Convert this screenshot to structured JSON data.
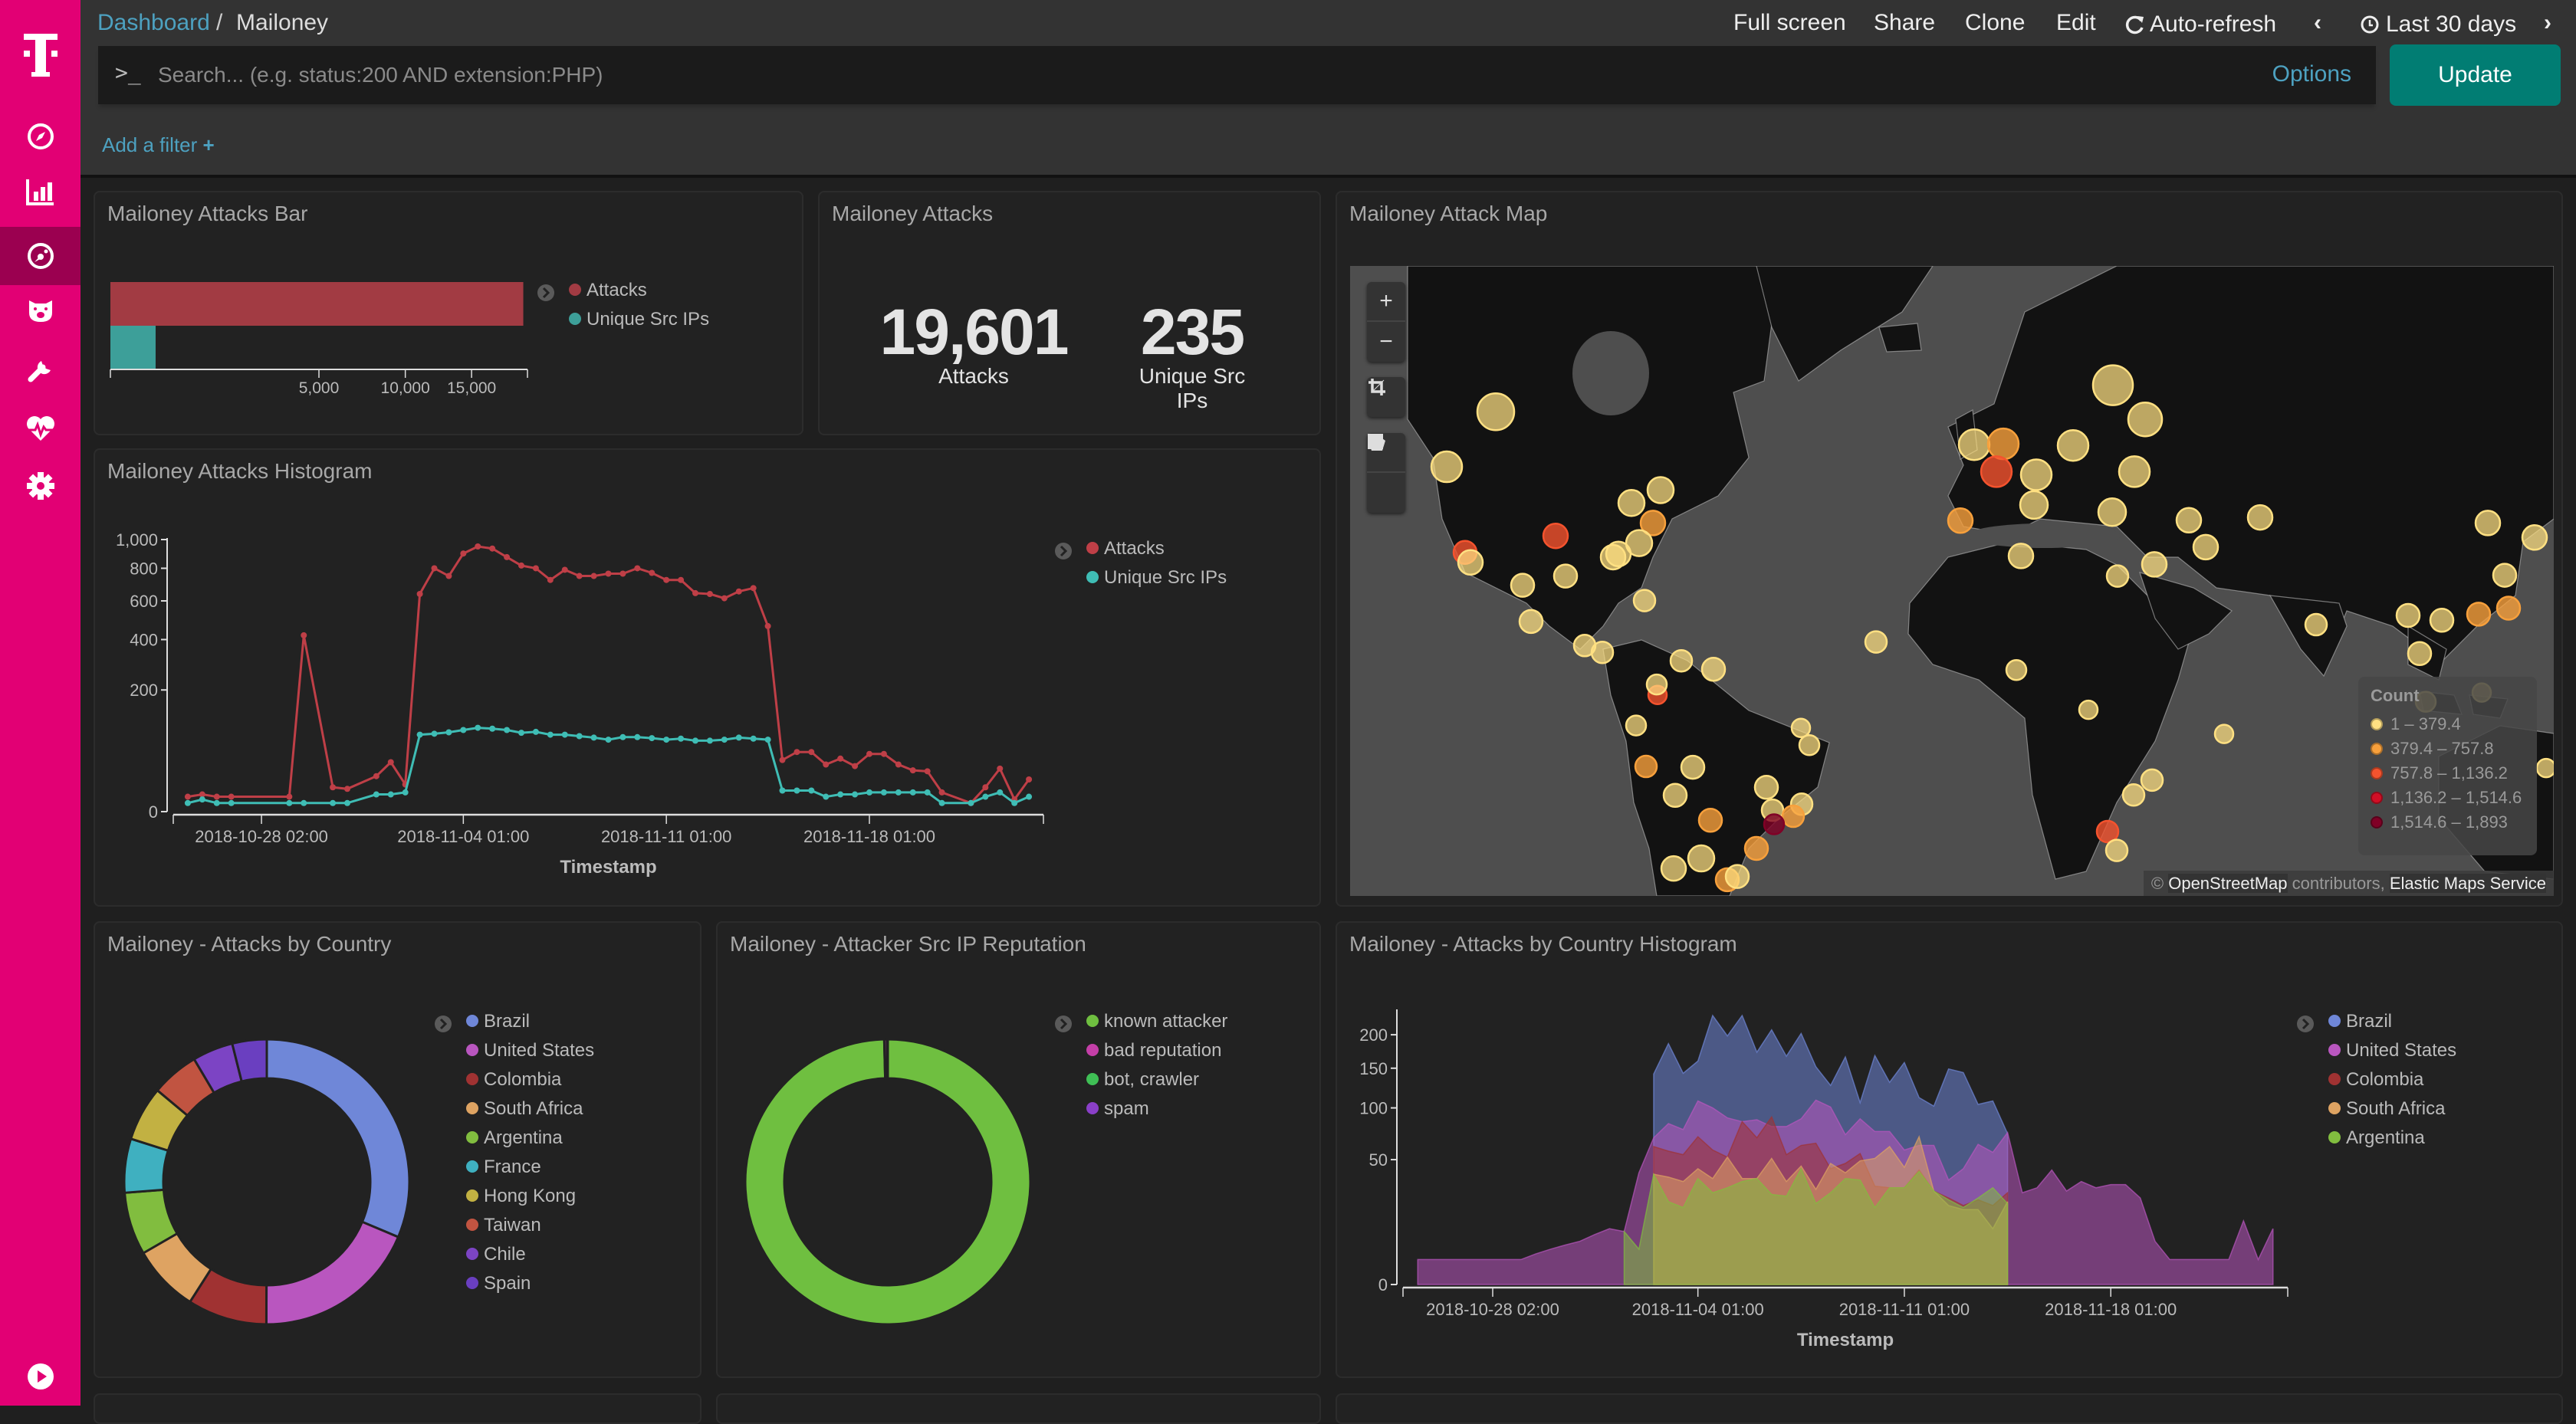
{
  "breadcrumb": {
    "root": "Dashboard",
    "separator": "/",
    "current": "Mailoney"
  },
  "topmenu": {
    "full_screen": "Full screen",
    "share": "Share",
    "clone": "Clone",
    "edit": "Edit",
    "auto_refresh": "Auto-refresh",
    "prev": "‹",
    "time_range": "Last 30 days",
    "next": "›"
  },
  "search": {
    "prompt": ">_",
    "placeholder": "Search... (e.g. status:200 AND extension:PHP)",
    "value": "",
    "options": "Options",
    "update": "Update"
  },
  "filter": {
    "add": "Add a filter",
    "plus": "+"
  },
  "colors": {
    "brand": "#e20074",
    "accent": "#4da1c0",
    "update": "#017d73",
    "attacks": "#bf3f47",
    "unique_ips": "#3fbdb5"
  },
  "sidebar": {
    "items": [
      {
        "icon": "discover-compass-icon"
      },
      {
        "icon": "visualize-bar-chart-icon"
      },
      {
        "icon": "dashboard-icon",
        "active": true
      },
      {
        "icon": "timelion-bear-icon"
      },
      {
        "icon": "dev-tools-wrench-icon"
      },
      {
        "icon": "monitoring-heart-icon"
      },
      {
        "icon": "management-gear-icon"
      },
      {
        "icon": "collapse-play-icon"
      }
    ]
  },
  "panels": {
    "bar": {
      "title": "Mailoney Attacks Bar"
    },
    "metric": {
      "title": "Mailoney Attacks",
      "items": [
        {
          "value": "19,601",
          "label": "Attacks"
        },
        {
          "value": "235",
          "label": "Unique Src IPs"
        }
      ]
    },
    "map": {
      "title": "Mailoney Attack Map",
      "controls": {
        "zoom_in": "+",
        "zoom_out": "−"
      },
      "legend": {
        "title": "Count",
        "items": [
          {
            "label": "1 – 379.4",
            "color": "#ffe082"
          },
          {
            "label": "379.4 – 757.8",
            "color": "#f7a03c"
          },
          {
            "label": "757.8 – 1,136.2",
            "color": "#f4532e"
          },
          {
            "label": "1,136.2 – 1,514.6",
            "color": "#d10f26"
          },
          {
            "label": "1,514.6 – 1,893",
            "color": "#800026"
          }
        ]
      },
      "attribution": {
        "copy": "©",
        "osm": "OpenStreetMap",
        "contrib": " contributors, ",
        "ems": "Elastic Maps Service"
      }
    },
    "histogram": {
      "title": "Mailoney Attacks Histogram"
    },
    "country": {
      "title": "Mailoney - Attacks by Country"
    },
    "reputation": {
      "title": "Mailoney - Attacker Src IP Reputation"
    },
    "country_hist": {
      "title": "Mailoney - Attacks by Country Histogram"
    }
  },
  "chart_data": [
    {
      "id": "bar",
      "type": "bar",
      "orientation": "horizontal",
      "scale": "sqrt",
      "series": [
        {
          "name": "Attacks",
          "value": 19601,
          "color": "#a23b43"
        },
        {
          "name": "Unique Src IPs",
          "value": 235,
          "color": "#3d9f99"
        }
      ],
      "xlim": [
        0,
        20000
      ],
      "ticks": [
        5000,
        10000,
        15000
      ],
      "tick_labels": [
        "5,000",
        "10,000",
        "15,000"
      ],
      "legend": "right"
    },
    {
      "id": "histogram",
      "type": "line",
      "yscale": "sqrt",
      "xlabel": "Timestamp",
      "ylim": [
        0,
        1000
      ],
      "yticks": [
        0,
        200,
        400,
        600,
        800,
        1000
      ],
      "ytick_labels": [
        "0",
        "200",
        "400",
        "600",
        "800",
        "1,000"
      ],
      "xlim": [
        "2018-10-25 01:00",
        "2018-11-24 01:00"
      ],
      "xticks": [
        "2018-10-28 02:00",
        "2018-11-04 01:00",
        "2018-11-11 01:00",
        "2018-11-18 01:00"
      ],
      "legend": "right",
      "x": [
        "2018-10-25 13:00",
        "2018-10-26 01:00",
        "2018-10-26 13:00",
        "2018-10-27 01:00",
        "2018-10-27 13:00",
        "2018-10-28 01:00",
        "2018-10-28 13:00",
        "2018-10-29 01:00",
        "2018-10-29 13:00",
        "2018-10-30 01:00",
        "2018-10-30 13:00",
        "2018-10-31 01:00",
        "2018-10-31 13:00",
        "2018-11-01 01:00",
        "2018-11-01 13:00",
        "2018-11-02 01:00",
        "2018-11-02 13:00",
        "2018-11-03 01:00",
        "2018-11-03 13:00",
        "2018-11-04 01:00",
        "2018-11-04 13:00",
        "2018-11-05 01:00",
        "2018-11-05 13:00",
        "2018-11-06 01:00",
        "2018-11-06 13:00",
        "2018-11-07 01:00",
        "2018-11-07 13:00",
        "2018-11-08 01:00",
        "2018-11-08 13:00",
        "2018-11-09 01:00",
        "2018-11-09 13:00",
        "2018-11-10 01:00",
        "2018-11-10 13:00",
        "2018-11-11 01:00",
        "2018-11-11 13:00",
        "2018-11-12 01:00",
        "2018-11-12 13:00",
        "2018-11-13 01:00",
        "2018-11-13 13:00",
        "2018-11-14 01:00",
        "2018-11-14 13:00",
        "2018-11-15 01:00",
        "2018-11-15 13:00",
        "2018-11-16 01:00",
        "2018-11-16 13:00",
        "2018-11-17 01:00",
        "2018-11-17 13:00",
        "2018-11-18 01:00",
        "2018-11-18 13:00",
        "2018-11-19 01:00",
        "2018-11-19 13:00",
        "2018-11-20 01:00",
        "2018-11-20 13:00",
        "2018-11-21 01:00",
        "2018-11-21 13:00",
        "2018-11-22 01:00",
        "2018-11-22 13:00",
        "2018-11-23 01:00",
        "2018-11-23 13:00"
      ],
      "series": [
        {
          "name": "Attacks",
          "color": "#bf3f47",
          "values": [
            3,
            4,
            3,
            3,
            null,
            null,
            null,
            3,
            420,
            null,
            8,
            7,
            null,
            17,
            33,
            10,
            640,
            800,
            750,
            900,
            950,
            935,
            875,
            818,
            800,
            725,
            790,
            750,
            750,
            765,
            765,
            800,
            770,
            725,
            725,
            645,
            640,
            615,
            655,
            675,
            465,
            36,
            48,
            48,
            30,
            38,
            28,
            45,
            45,
            30,
            23,
            22,
            5,
            null,
            1,
            8,
            25,
            2,
            14
          ]
        },
        {
          "name": "Unique Src IPs",
          "color": "#3fbdb5",
          "values": [
            1,
            2,
            1,
            1,
            null,
            null,
            null,
            1,
            1,
            null,
            1,
            1,
            null,
            4,
            4,
            5,
            80,
            82,
            85,
            90,
            95,
            93,
            90,
            84,
            86,
            80,
            80,
            77,
            74,
            70,
            75,
            75,
            73,
            70,
            72,
            68,
            68,
            70,
            74,
            72,
            70,
            6,
            6,
            6,
            3,
            4,
            4,
            5,
            5,
            5,
            5,
            5,
            1,
            null,
            1,
            3,
            5,
            1,
            3
          ]
        }
      ]
    },
    {
      "id": "country",
      "type": "pie",
      "donut": true,
      "unit": "percent",
      "legend": "right",
      "slices": [
        {
          "label": "Brazil",
          "value": 31.3,
          "color": "#6f87d8"
        },
        {
          "label": "United States",
          "value": 18.7,
          "color": "#b956bf"
        },
        {
          "label": "Colombia",
          "value": 9.0,
          "color": "#a03232"
        },
        {
          "label": "South Africa",
          "value": 7.6,
          "color": "#dea362"
        },
        {
          "label": "Argentina",
          "value": 7.1,
          "color": "#81bd3f"
        },
        {
          "label": "France",
          "value": 6.1,
          "color": "#3fb0c0"
        },
        {
          "label": "Hong Kong",
          "value": 6.2,
          "color": "#c2b142"
        },
        {
          "label": "Taiwan",
          "value": 5.4,
          "color": "#c15441"
        },
        {
          "label": "Chile",
          "value": 4.6,
          "color": "#7c44c4"
        },
        {
          "label": "Spain",
          "value": 3.9,
          "color": "#6a3fc0"
        }
      ]
    },
    {
      "id": "reputation",
      "type": "pie",
      "donut": true,
      "unit": "percent",
      "legend": "right",
      "slices": [
        {
          "label": "known attacker",
          "value": 99.6,
          "color": "#6fbf40"
        },
        {
          "label": "bad reputation",
          "value": 0.3,
          "color": "#c43fa8"
        },
        {
          "label": "bot, crawler",
          "value": 0.05,
          "color": "#3fbf55"
        },
        {
          "label": "spam",
          "value": 0.05,
          "color": "#8a3fc8"
        }
      ]
    },
    {
      "id": "country_hist",
      "type": "area",
      "stacked": false,
      "yscale": "sqrt",
      "xlabel": "Timestamp",
      "ylim": [
        0,
        240
      ],
      "yticks": [
        0,
        50,
        100,
        150,
        200
      ],
      "ytick_labels": [
        "0",
        "50",
        "100",
        "150",
        "200"
      ],
      "xlim": [
        "2018-10-25 01:00",
        "2018-11-24 01:00"
      ],
      "xticks": [
        "2018-10-28 02:00",
        "2018-11-04 01:00",
        "2018-11-11 01:00",
        "2018-11-18 01:00"
      ],
      "legend": "right",
      "x": [
        "2018-10-25 13:00",
        "2018-10-26 01:00",
        "2018-10-26 13:00",
        "2018-10-27 01:00",
        "2018-10-27 13:00",
        "2018-10-28 01:00",
        "2018-10-28 13:00",
        "2018-10-29 01:00",
        "2018-10-29 13:00",
        "2018-10-30 01:00",
        "2018-10-30 13:00",
        "2018-10-31 01:00",
        "2018-10-31 13:00",
        "2018-11-01 01:00",
        "2018-11-01 13:00",
        "2018-11-02 01:00",
        "2018-11-02 13:00",
        "2018-11-03 01:00",
        "2018-11-03 13:00",
        "2018-11-04 01:00",
        "2018-11-04 13:00",
        "2018-11-05 01:00",
        "2018-11-05 13:00",
        "2018-11-06 01:00",
        "2018-11-06 13:00",
        "2018-11-07 01:00",
        "2018-11-07 13:00",
        "2018-11-08 01:00",
        "2018-11-08 13:00",
        "2018-11-09 01:00",
        "2018-11-09 13:00",
        "2018-11-10 01:00",
        "2018-11-10 13:00",
        "2018-11-11 01:00",
        "2018-11-11 13:00",
        "2018-11-12 01:00",
        "2018-11-12 13:00",
        "2018-11-13 01:00",
        "2018-11-13 13:00",
        "2018-11-14 01:00",
        "2018-11-14 13:00",
        "2018-11-15 01:00",
        "2018-11-15 13:00",
        "2018-11-16 01:00",
        "2018-11-16 13:00",
        "2018-11-17 01:00",
        "2018-11-17 13:00",
        "2018-11-18 01:00",
        "2018-11-18 13:00",
        "2018-11-19 01:00",
        "2018-11-19 13:00",
        "2018-11-20 01:00",
        "2018-11-20 13:00",
        "2018-11-21 01:00",
        "2018-11-21 13:00",
        "2018-11-22 01:00",
        "2018-11-22 13:00",
        "2018-11-23 01:00",
        "2018-11-23 13:00"
      ],
      "series": [
        {
          "name": "Brazil",
          "color": "#6f87d8",
          "values": [
            null,
            null,
            null,
            null,
            null,
            null,
            null,
            null,
            null,
            null,
            null,
            null,
            null,
            null,
            null,
            null,
            142,
            186,
            143,
            160,
            232,
            198,
            232,
            173,
            208,
            167,
            202,
            152,
            127,
            166,
            106,
            168,
            131,
            158,
            112,
            102,
            149,
            144,
            104,
            108,
            73,
            null,
            null,
            null,
            null,
            null,
            null,
            null,
            null,
            null,
            null,
            null,
            null,
            null,
            null,
            null,
            null,
            null,
            null
          ]
        },
        {
          "name": "United States",
          "color": "#b956bf",
          "values": [
            2,
            2,
            2,
            2,
            2,
            2,
            2,
            2,
            3,
            4,
            5,
            6,
            8,
            10,
            9,
            40,
            69,
            83,
            77,
            108,
            100,
            89,
            85,
            87,
            80,
            80,
            88,
            109,
            101,
            72,
            88,
            75,
            75,
            58,
            62,
            62,
            35,
            43,
            63,
            56,
            74,
            27,
            30,
            42,
            28,
            34,
            30,
            32,
            32,
            24,
            6,
            2,
            2,
            2,
            2,
            2,
            13,
            2,
            10
          ]
        },
        {
          "name": "Colombia",
          "color": "#a03232",
          "values": [
            null,
            null,
            null,
            null,
            null,
            null,
            null,
            null,
            null,
            null,
            null,
            null,
            null,
            null,
            null,
            null,
            61,
            57,
            54,
            70,
            58,
            52,
            85,
            69,
            90,
            54,
            62,
            64,
            43,
            47,
            55,
            31,
            30,
            30,
            42,
            28,
            24,
            20,
            23,
            20,
            27,
            null,
            null,
            null,
            null,
            null,
            null,
            null,
            null,
            null,
            null,
            null,
            null,
            null,
            null,
            null,
            null,
            null,
            null
          ]
        },
        {
          "name": "South Africa",
          "color": "#dea362",
          "values": [
            null,
            null,
            null,
            null,
            null,
            null,
            null,
            null,
            null,
            null,
            null,
            null,
            null,
            null,
            null,
            null,
            39,
            37,
            34,
            43,
            36,
            52,
            36,
            36,
            51,
            34,
            45,
            29,
            47,
            40,
            49,
            51,
            61,
            44,
            70,
            28,
            20,
            18,
            18,
            10,
            22,
            null,
            null,
            null,
            null,
            null,
            null,
            null,
            null,
            null,
            null,
            null,
            null,
            null,
            null,
            null,
            null,
            null,
            null
          ]
        },
        {
          "name": "Argentina",
          "color": "#81bd3f",
          "values": [
            null,
            null,
            null,
            null,
            null,
            null,
            null,
            null,
            null,
            null,
            null,
            null,
            null,
            null,
            9,
            4,
            39,
            22,
            19,
            36,
            27,
            30,
            34,
            36,
            26,
            25,
            43,
            21,
            27,
            36,
            35,
            19,
            30,
            30,
            41,
            28,
            23,
            19,
            24,
            30,
            21,
            null,
            null,
            null,
            null,
            null,
            null,
            null,
            null,
            null,
            null,
            null,
            null,
            null,
            null,
            null,
            null,
            null,
            null
          ]
        }
      ]
    }
  ]
}
